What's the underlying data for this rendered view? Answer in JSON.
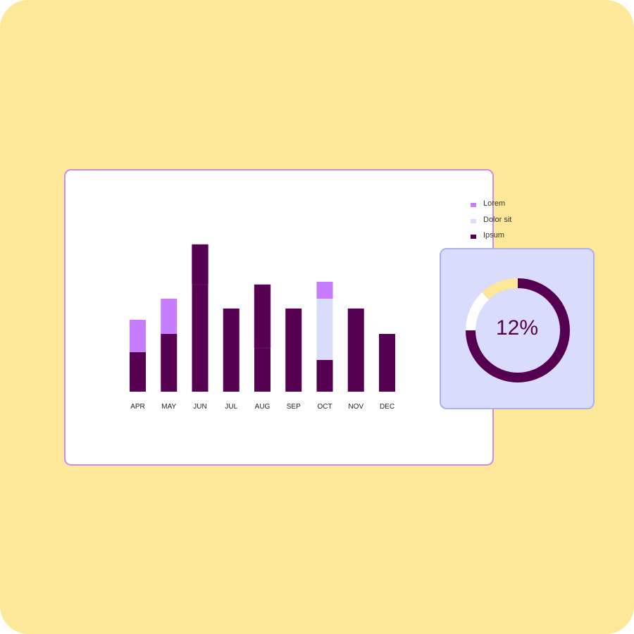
{
  "colors": {
    "background": "#fde89a",
    "lorem": "#c77dff",
    "dolor_sit": "#d9dcfc",
    "ipsum": "#560051",
    "card_border": "#c98bf0",
    "donut_card": "#d9dcfc"
  },
  "chart_data": [
    {
      "type": "bar",
      "stacked": true,
      "categories": [
        "APR",
        "MAY",
        "JUN",
        "JUL",
        "AUG",
        "SEP",
        "OCT",
        "NOV",
        "DEC"
      ],
      "series": [
        {
          "name": "Ipsum",
          "color": "#560051",
          "values": [
            56,
            82,
            152,
            118,
            62,
            118,
            45,
            118,
            82
          ]
        },
        {
          "name": "",
          "color": "#560051",
          "values": [
            0,
            0,
            57,
            0,
            90,
            0,
            0,
            0,
            0
          ]
        },
        {
          "name": "Dolor sit",
          "color": "#d9dcfc",
          "values": [
            0,
            0,
            0,
            0,
            0,
            0,
            87,
            0,
            0
          ]
        },
        {
          "name": "Lorem",
          "color": "#c77dff",
          "values": [
            46,
            50,
            0,
            0,
            0,
            0,
            24,
            0,
            0
          ]
        }
      ],
      "legend": [
        "Lorem",
        "Dolor sit",
        "Ipsum"
      ],
      "legend_position": "top-right",
      "ylim": [
        0,
        220
      ],
      "grid": false
    },
    {
      "type": "pie",
      "donut": true,
      "label": "12%",
      "slices": [
        {
          "value": 75,
          "color": "#560051"
        },
        {
          "value": 13,
          "color": "#ffffff"
        },
        {
          "value": 12,
          "color": "#fde89a"
        }
      ]
    }
  ]
}
